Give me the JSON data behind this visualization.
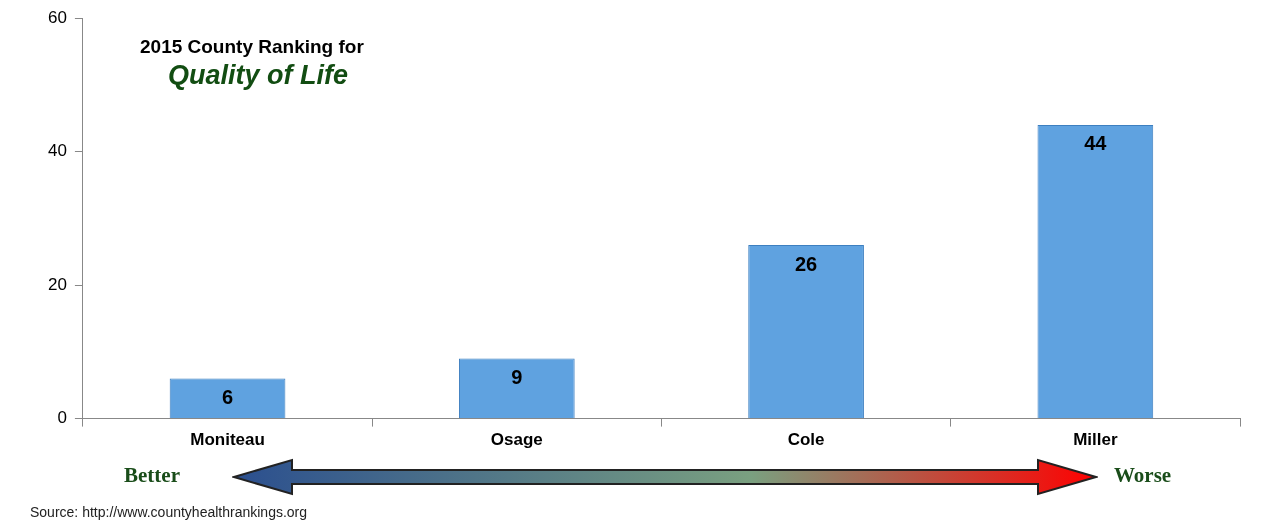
{
  "chart_data": {
    "type": "bar",
    "title": "2015 County Ranking for",
    "subtitle": "Quality of Life",
    "categories": [
      "Moniteau",
      "Osage",
      "Cole",
      "Miller"
    ],
    "values": [
      6,
      9,
      26,
      44
    ],
    "color": "#5fa2e0",
    "ylim": [
      0,
      60
    ],
    "yticks": [
      0,
      20,
      40,
      60
    ],
    "grid": false,
    "legend": false,
    "data_labels": true,
    "annotations": [
      "Better",
      "Worse",
      "Source:  http://www.countyhealthrankings.org"
    ]
  }
}
